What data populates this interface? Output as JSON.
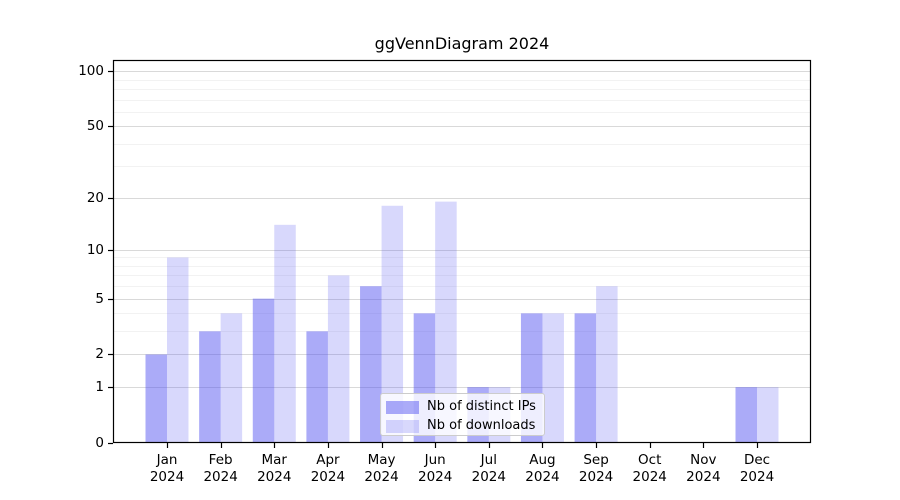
{
  "figure": {
    "title": "ggVennDiagram 2024"
  },
  "chart_data": {
    "type": "bar",
    "title": "ggVennDiagram 2024",
    "x_axis": {
      "categories": [
        "Jan",
        "Feb",
        "Mar",
        "Apr",
        "May",
        "Jun",
        "Jul",
        "Aug",
        "Sep",
        "Oct",
        "Nov",
        "Dec"
      ],
      "year_suffix": "2024"
    },
    "y_axis": {
      "scale": "log1p",
      "major_ticks": [
        0,
        1,
        2,
        5,
        10,
        20,
        50,
        100
      ],
      "minor_gridlines": [
        3,
        4,
        6,
        7,
        8,
        9,
        30,
        40,
        60,
        70,
        80,
        90
      ],
      "max": 115
    },
    "series": [
      {
        "name": "Nb of distinct IPs",
        "color": "rgba(77,77,240,0.47)",
        "values": [
          2,
          3,
          5,
          3,
          6,
          4,
          1,
          4,
          4,
          0,
          0,
          1
        ]
      },
      {
        "name": "Nb of downloads",
        "color": "rgba(77,77,240,0.22)",
        "values": [
          9,
          4,
          14,
          7,
          18,
          19,
          1,
          4,
          6,
          0,
          0,
          1
        ]
      }
    ],
    "legend_position": "lower center",
    "grid": true,
    "xlabel": "",
    "ylabel": ""
  },
  "colors": {
    "grid_major": "#d9d9d9",
    "grid_minor": "#f2f2f2",
    "spine": "#000000",
    "background": "#ffffff",
    "text": "#000000"
  }
}
